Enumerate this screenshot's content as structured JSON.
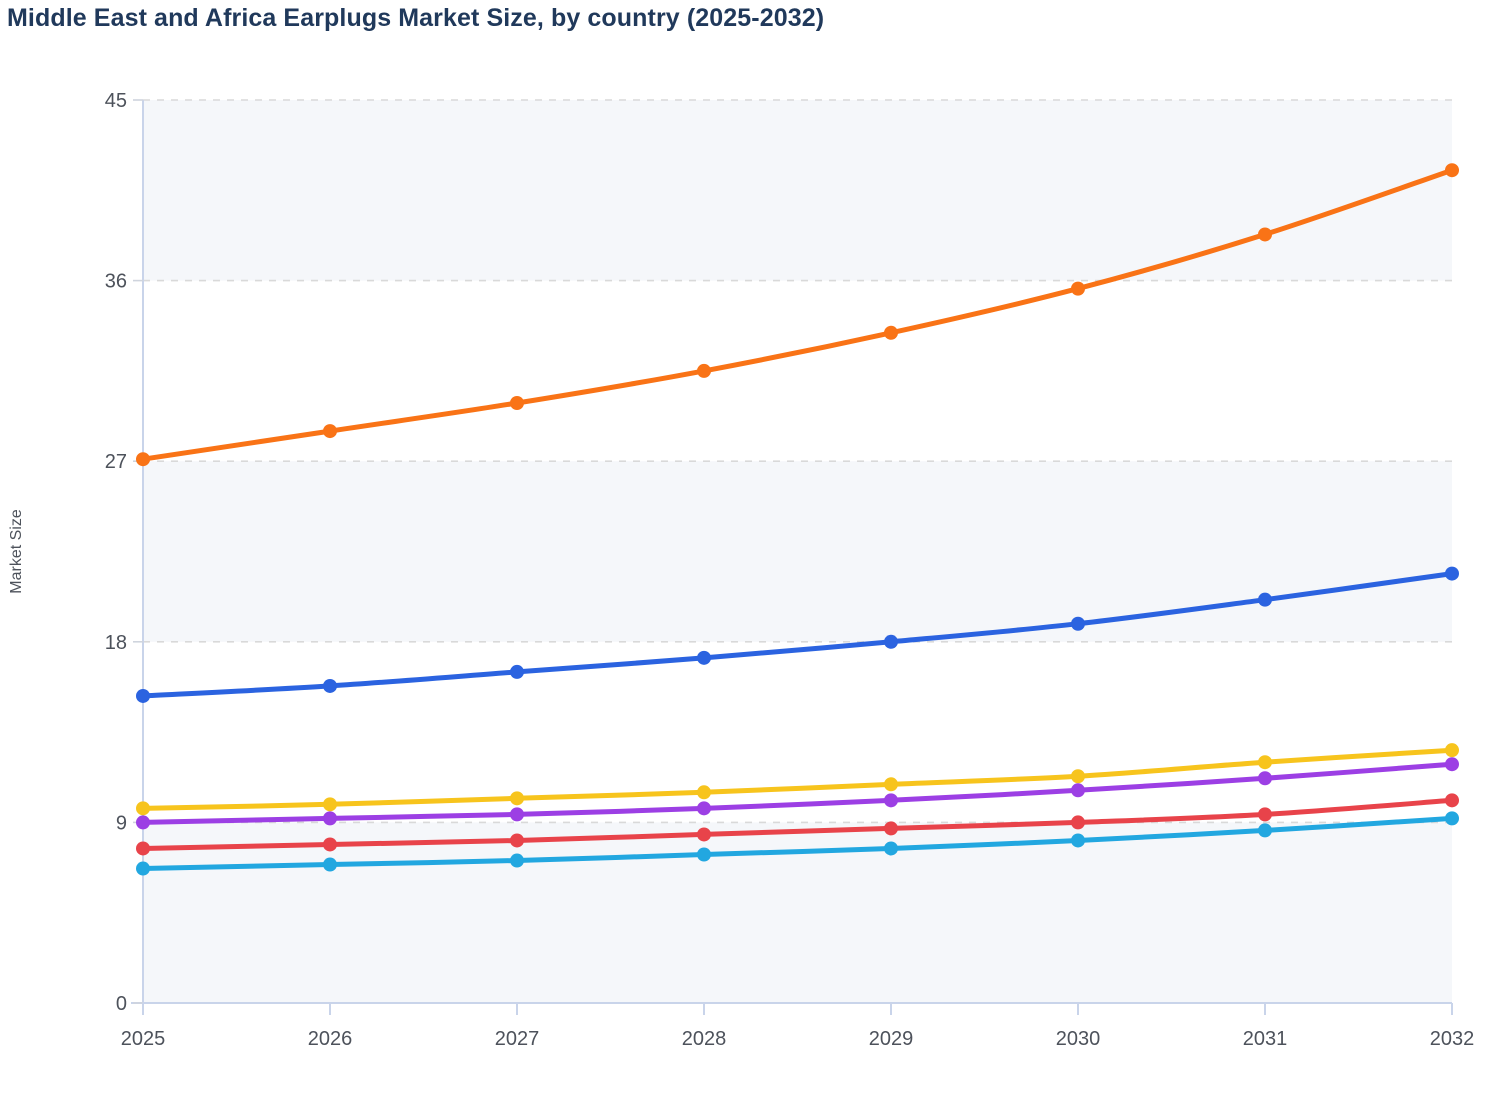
{
  "page": {
    "background": "#ffffff"
  },
  "chart_data": {
    "type": "line",
    "title": "Middle East and Africa Earplugs Market Size, by country (2025-2032)",
    "xlabel": "",
    "ylabel": "Market Size",
    "x": [
      2025,
      2026,
      2027,
      2028,
      2029,
      2030,
      2031,
      2032
    ],
    "yticks": [
      0,
      9,
      18,
      27,
      36,
      45
    ],
    "ylim": [
      0,
      45
    ],
    "grid": "horizontal-dashed",
    "alternating_bands": [
      [
        0,
        9
      ],
      [
        18,
        27
      ],
      [
        36,
        45
      ]
    ],
    "legend_position": "none",
    "series": [
      {
        "id": "orange",
        "color": "#f97316",
        "values": [
          27.1,
          28.5,
          29.9,
          31.5,
          33.4,
          35.6,
          38.3,
          41.5
        ]
      },
      {
        "id": "blue",
        "color": "#2b63e0",
        "values": [
          15.3,
          15.8,
          16.5,
          17.2,
          18.0,
          18.9,
          20.1,
          21.4
        ]
      },
      {
        "id": "yellow",
        "color": "#f7c41d",
        "values": [
          9.7,
          9.9,
          10.2,
          10.5,
          10.9,
          11.3,
          12.0,
          12.6
        ]
      },
      {
        "id": "purple",
        "color": "#9c3fe4",
        "values": [
          9.0,
          9.2,
          9.4,
          9.7,
          10.1,
          10.6,
          11.2,
          11.9
        ]
      },
      {
        "id": "red",
        "color": "#e8434a",
        "values": [
          7.7,
          7.9,
          8.1,
          8.4,
          8.7,
          9.0,
          9.4,
          10.1
        ]
      },
      {
        "id": "cyan",
        "color": "#22a7e0",
        "values": [
          6.7,
          6.9,
          7.1,
          7.4,
          7.7,
          8.1,
          8.6,
          9.2
        ]
      }
    ],
    "colors": {
      "title_text": "#20395b",
      "axis_line": "#c9d4ea",
      "tick_mark": "#cfd4dd",
      "gridline": "#d9d9d9",
      "band_fill": "#f5f7fa",
      "tick_label": "#4d525b",
      "axis_title": "#4d525b"
    }
  }
}
